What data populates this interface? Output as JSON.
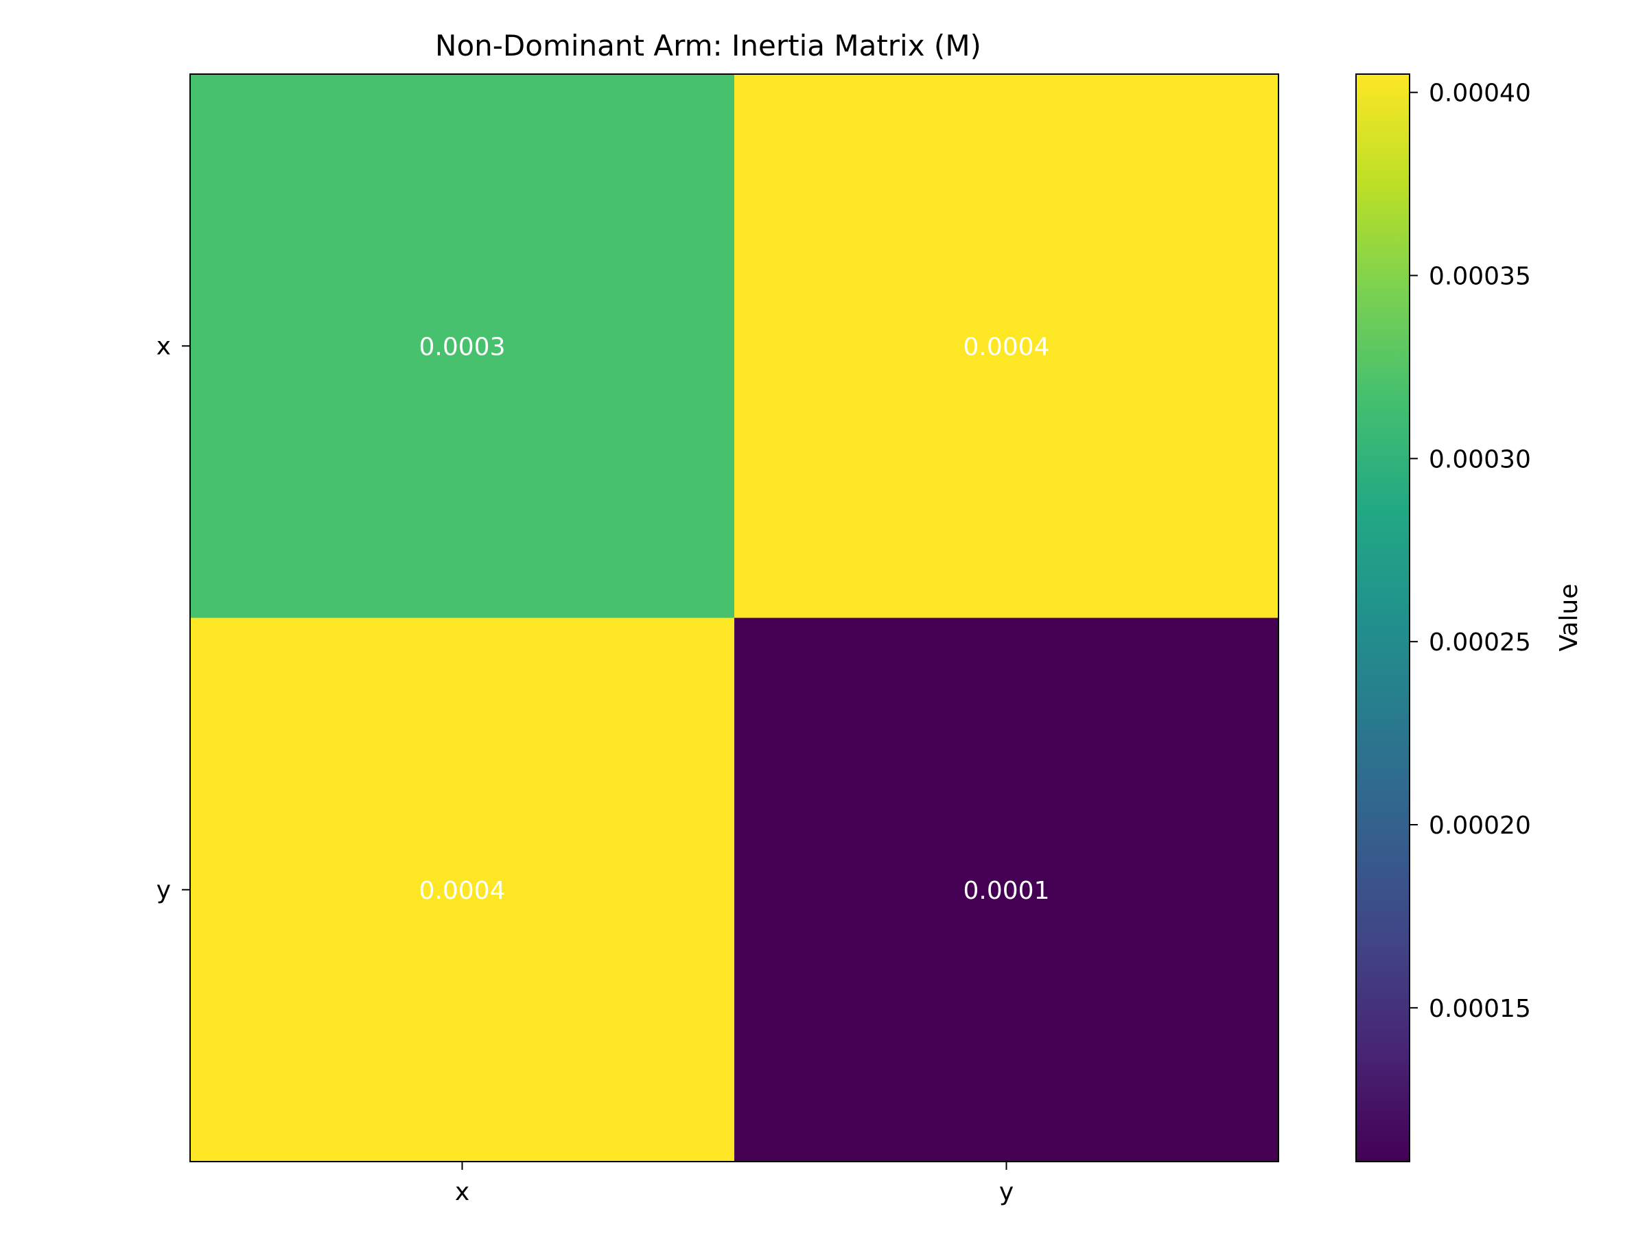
{
  "chart_data": {
    "type": "heatmap",
    "title": "Non-Dominant Arm: Inertia Matrix (M)",
    "x_categories": [
      "x",
      "y"
    ],
    "y_categories": [
      "x",
      "y"
    ],
    "values": [
      [
        0.00033,
        0.000405
      ],
      [
        0.000405,
        0.000108
      ]
    ],
    "cell_labels": [
      [
        "0.0003",
        "0.0004"
      ],
      [
        "0.0004",
        "0.0001"
      ]
    ],
    "colormap": "viridis",
    "colorbar": {
      "label": "Value",
      "range": [
        0.000108,
        0.000405
      ],
      "ticks": [
        0.00015,
        0.0002,
        0.00025,
        0.0003,
        0.00035,
        0.0004
      ],
      "tick_labels": [
        "0.00015",
        "0.00020",
        "0.00025",
        "0.00030",
        "0.00035",
        "0.00040"
      ]
    },
    "colors": {
      "cell_00": "#47c16e",
      "cell_01": "#fde725",
      "cell_10": "#fde725",
      "cell_11": "#440154"
    }
  }
}
